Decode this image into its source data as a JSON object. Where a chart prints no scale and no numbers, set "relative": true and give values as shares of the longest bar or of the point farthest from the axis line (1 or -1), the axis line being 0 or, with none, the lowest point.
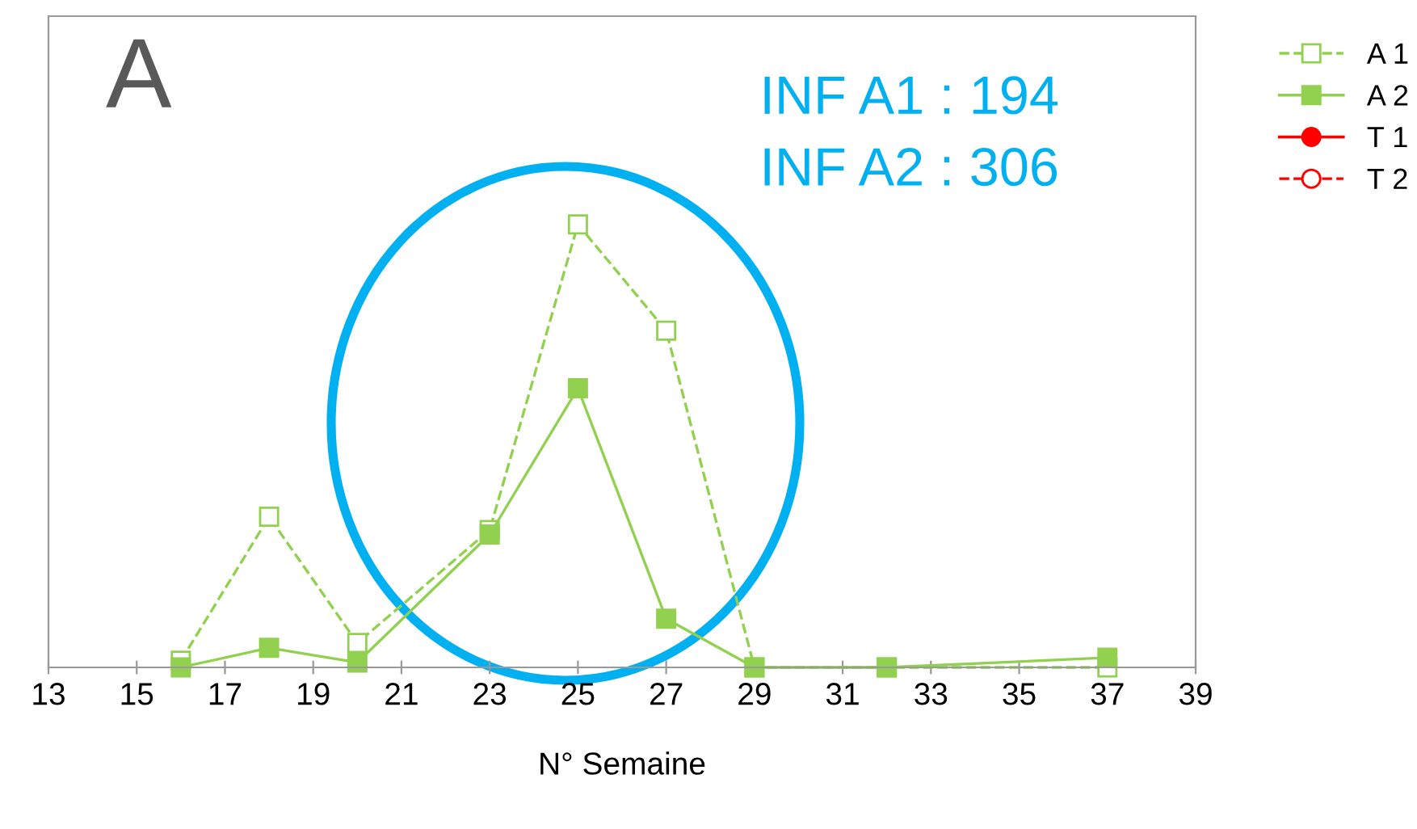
{
  "chart_data": {
    "type": "line",
    "relative": true,
    "xlabel": "N° Semaine",
    "x": [
      16,
      18,
      20,
      23,
      25,
      27,
      29,
      32,
      37
    ],
    "xlim": [
      13,
      39
    ],
    "xticks": [
      13,
      15,
      17,
      19,
      21,
      23,
      25,
      27,
      29,
      31,
      33,
      35,
      37,
      39
    ],
    "annotations": [
      "A",
      "INF A1 : 194",
      "INF A2 : 306"
    ],
    "legend": "top right",
    "grid": false,
    "series": [
      {
        "name": "A 1",
        "color": "#92d050",
        "marker": "square",
        "line_style": "dashed",
        "values": [
          0.015,
          0.34,
          0.055,
          0.31,
          1,
          0.76,
          0,
          0,
          0
        ]
      },
      {
        "name": "A 2",
        "color": "#92d050",
        "marker": "square",
        "line_style": "solid",
        "values": [
          0,
          0.044,
          0.011,
          0.3,
          0.63,
          0.11,
          0,
          0,
          0.022
        ]
      },
      {
        "name": "T 1",
        "color": "#ff0000",
        "marker": "circle",
        "line_style": "solid",
        "values": [
          null,
          null,
          null,
          null,
          null,
          null,
          null,
          null,
          null
        ]
      },
      {
        "name": "T 2",
        "color": "#ff0000",
        "marker": "circle",
        "line_style": "dashed",
        "values": [
          null,
          null,
          null,
          null,
          null,
          null,
          null,
          null,
          null
        ]
      }
    ]
  }
}
